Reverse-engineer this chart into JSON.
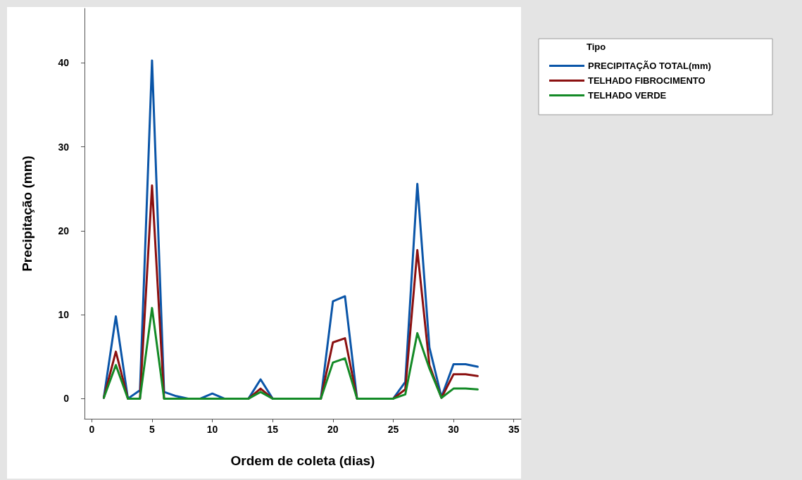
{
  "chart_data": {
    "type": "line",
    "xlabel": "Ordem de coleta (dias)",
    "ylabel": "Precipitação (mm)",
    "legend_title": "Tipo",
    "x": [
      1,
      2,
      3,
      4,
      5,
      6,
      7,
      8,
      9,
      10,
      11,
      12,
      13,
      14,
      15,
      16,
      17,
      18,
      19,
      20,
      21,
      22,
      23,
      24,
      25,
      26,
      27,
      28,
      29,
      30,
      31,
      32
    ],
    "series": [
      {
        "name": "PRECIPITAÇÃO TOTAL(mm)",
        "color": "#0a55a8",
        "values": [
          0.1,
          9.8,
          0,
          1.0,
          40.3,
          0.8,
          0.3,
          0,
          0,
          0.6,
          0,
          0,
          0,
          2.3,
          0,
          0,
          0,
          0,
          0,
          11.6,
          12.2,
          0,
          0,
          0,
          0,
          2.0,
          25.6,
          6.1,
          0.2,
          4.1,
          4.1,
          3.8
        ]
      },
      {
        "name": "TELHADO FIBROCIMENTO",
        "color": "#8b1010",
        "values": [
          0.1,
          5.6,
          0,
          0,
          25.4,
          0,
          0,
          0,
          0,
          0,
          0,
          0,
          0,
          1.2,
          0,
          0,
          0,
          0,
          0,
          6.7,
          7.2,
          0,
          0,
          0,
          0,
          1.1,
          17.7,
          4.0,
          0.1,
          2.9,
          2.9,
          2.7
        ]
      },
      {
        "name": "TELHADO VERDE",
        "color": "#138a26",
        "values": [
          0.1,
          4.0,
          0,
          0,
          10.8,
          0,
          0,
          0,
          0,
          0,
          0,
          0,
          0,
          0.8,
          0,
          0,
          0,
          0,
          0,
          4.3,
          4.8,
          0,
          0,
          0,
          0,
          0.5,
          7.8,
          3.6,
          0.1,
          1.2,
          1.2,
          1.1
        ]
      }
    ],
    "xlim": [
      -0.6,
      35.6
    ],
    "xticks": [
      0,
      5,
      10,
      15,
      20,
      25,
      30,
      35
    ],
    "ylim": [
      -2.4,
      46.5
    ],
    "yticks": [
      0,
      10,
      20,
      30,
      40
    ],
    "grid": false,
    "legend": "top right",
    "marker": "none",
    "line_style": "solid"
  }
}
